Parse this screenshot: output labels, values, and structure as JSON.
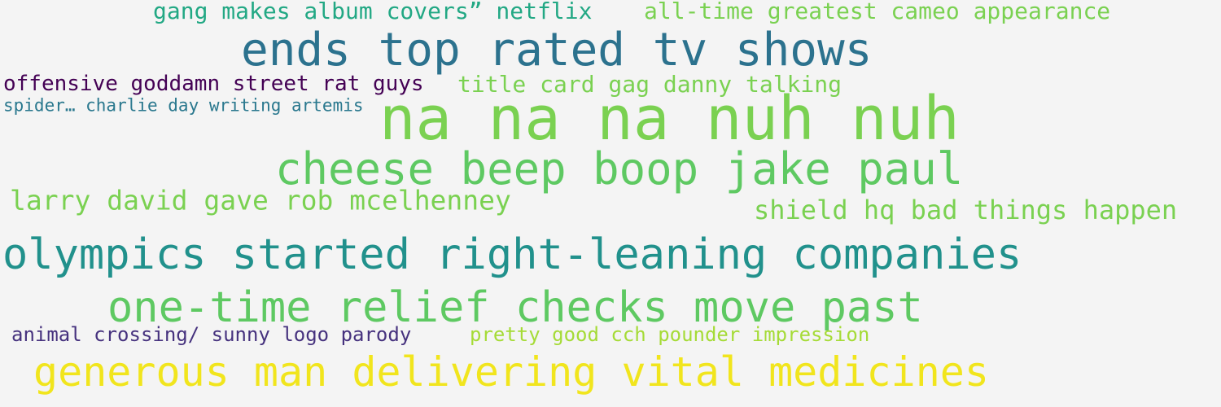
{
  "phrases": [
    {
      "text": "gang makes album covers” netflix",
      "color": "#22a884"
    },
    {
      "text": "all-time greatest cameo appearance",
      "color": "#7ad151"
    },
    {
      "text": "ends top rated tv shows",
      "color": "#2c728e"
    },
    {
      "text": "offensive goddamn street rat guys",
      "color": "#440154"
    },
    {
      "text": "title card gag danny talking",
      "color": "#7ad151"
    },
    {
      "text": "spider… charlie day writing artemis",
      "color": "#2a788e"
    },
    {
      "text": "na na na nuh nuh",
      "color": "#7ad151"
    },
    {
      "text": "cheese beep boop jake paul",
      "color": "#5ec962"
    },
    {
      "text": "larry david gave rob mcelhenney",
      "color": "#7ad151"
    },
    {
      "text": "shield hq bad things happen",
      "color": "#7ad151"
    },
    {
      "text": "olympics started right-leaning companies",
      "color": "#21918c"
    },
    {
      "text": "one-time relief checks move past",
      "color": "#5ec962"
    },
    {
      "text": "animal crossing/ sunny logo parody",
      "color": "#46327e"
    },
    {
      "text": "pretty good cch pounder impression",
      "color": "#a5db36"
    },
    {
      "text": "generous man delivering vital medicines",
      "color": "#f1e51d"
    }
  ]
}
